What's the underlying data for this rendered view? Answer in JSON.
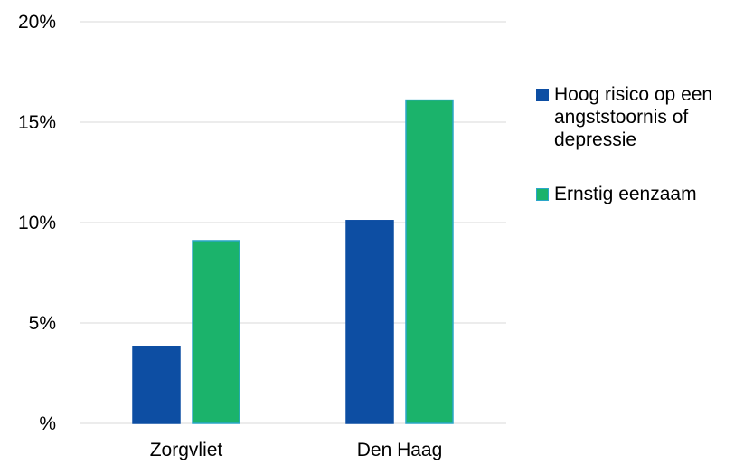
{
  "chart_data": {
    "type": "bar",
    "categories": [
      "Zorgvliet",
      "Den Haag"
    ],
    "series": [
      {
        "name": "Hoog risico op een angststoornis of depressie",
        "values": [
          3.8,
          10.1
        ]
      },
      {
        "name": "Ernstig eenzaam",
        "values": [
          9.1,
          16.1
        ]
      }
    ],
    "y_ticks": [
      {
        "value": 0,
        "label": "%"
      },
      {
        "value": 5,
        "label": "5%"
      },
      {
        "value": 10,
        "label": "10%"
      },
      {
        "value": 15,
        "label": "15%"
      },
      {
        "value": 20,
        "label": "20%"
      }
    ],
    "ylim": [
      0,
      20
    ],
    "grid": true,
    "legend_position": "right",
    "title": "",
    "xlabel": "",
    "ylabel": "",
    "colors": {
      "series_fill": [
        "#0d4ea3",
        "#1bb36b"
      ],
      "series_stroke": [
        "#0d4ea3",
        "#2ba6c9"
      ],
      "grid": "#d9d9d9"
    }
  }
}
